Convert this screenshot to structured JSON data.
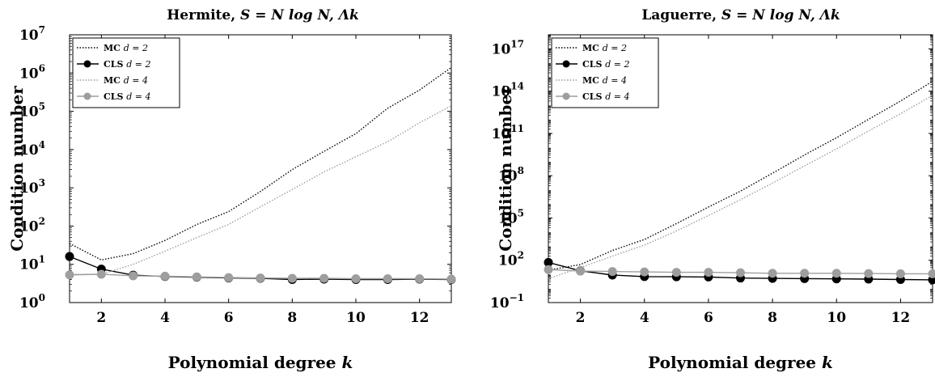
{
  "chart_data": [
    {
      "type": "line",
      "title": "Hermite, S = N log N, Λk",
      "xlabel": "Polynomial degree k",
      "ylabel": "Condition number",
      "xlim": [
        1,
        13
      ],
      "ylim": [
        1,
        10000000
      ],
      "yscale": "log",
      "xticks": [
        2,
        4,
        6,
        8,
        10,
        12
      ],
      "yticks": [
        {
          "base": "10",
          "exp": "0",
          "value": 1
        },
        {
          "base": "10",
          "exp": "1",
          "value": 10
        },
        {
          "base": "10",
          "exp": "2",
          "value": 100
        },
        {
          "base": "10",
          "exp": "3",
          "value": 1000
        },
        {
          "base": "10",
          "exp": "4",
          "value": 10000
        },
        {
          "base": "10",
          "exp": "5",
          "value": 100000
        },
        {
          "base": "10",
          "exp": "6",
          "value": 1000000
        },
        {
          "base": "10",
          "exp": "7",
          "value": 10000000
        }
      ],
      "grid": false,
      "legend_position": "top-left",
      "x": [
        1,
        2,
        3,
        4,
        5,
        6,
        7,
        8,
        9,
        10,
        11,
        12,
        13
      ],
      "series": [
        {
          "name": "MC d = 2",
          "label_main": "MC",
          "label_d": "d = 2",
          "color": "#000000",
          "style": "dotted",
          "marker": "none",
          "values": [
            35,
            13,
            19,
            42,
            110,
            240,
            800,
            3000,
            9000,
            26000,
            120000,
            360000,
            1400000
          ]
        },
        {
          "name": "CLS d = 2",
          "label_main": "CLS",
          "label_d": "d = 2",
          "color": "#000000",
          "style": "solid",
          "marker": "circle",
          "values": [
            16,
            7.5,
            5.2,
            4.8,
            4.6,
            4.4,
            4.3,
            4.0,
            4.1,
            4.0,
            4.0,
            4.1,
            4.0
          ]
        },
        {
          "name": "MC d = 4",
          "label_main": "MC",
          "label_d": "d = 4",
          "color": "#9e9e9e",
          "style": "dotted",
          "marker": "none",
          "values": [
            5.5,
            5.5,
            10,
            22,
            50,
            110,
            320,
            900,
            2600,
            6500,
            16000,
            50000,
            140000
          ]
        },
        {
          "name": "CLS d = 4",
          "label_main": "CLS",
          "label_d": "d = 4",
          "color": "#9e9e9e",
          "style": "solid",
          "marker": "circle",
          "values": [
            5.3,
            5.5,
            5.0,
            4.9,
            4.7,
            4.5,
            4.4,
            4.3,
            4.3,
            4.2,
            4.2,
            4.2,
            4.1
          ]
        }
      ]
    },
    {
      "type": "line",
      "title": "Laguerre, S = N log N, Λk",
      "xlabel": "Polynomial degree k",
      "ylabel": "Condition number",
      "xlim": [
        1,
        13
      ],
      "ylim": [
        0.1,
        1000000000000000000
      ],
      "yscale": "log",
      "xticks": [
        2,
        4,
        6,
        8,
        10,
        12
      ],
      "yticks": [
        {
          "base": "10",
          "exp": "−1",
          "value": 0.1
        },
        {
          "base": "10",
          "exp": "2",
          "value": 100
        },
        {
          "base": "10",
          "exp": "5",
          "value": 100000
        },
        {
          "base": "10",
          "exp": "8",
          "value": 100000000
        },
        {
          "base": "10",
          "exp": "11",
          "value": 100000000000
        },
        {
          "base": "10",
          "exp": "14",
          "value": 100000000000000
        },
        {
          "base": "10",
          "exp": "17",
          "value": 100000000000000000
        }
      ],
      "grid": false,
      "legend_position": "top-left",
      "x": [
        1,
        2,
        3,
        4,
        5,
        6,
        7,
        8,
        9,
        10,
        11,
        12,
        13
      ],
      "series": [
        {
          "name": "MC d = 2",
          "label_main": "MC",
          "label_d": "d = 2",
          "color": "#000000",
          "style": "dotted",
          "marker": "none",
          "values": [
            20,
            50,
            500,
            3000,
            40000,
            600000,
            8000000,
            150000000,
            3000000000,
            50000000000,
            1000000000000,
            20000000000000,
            500000000000000
          ]
        },
        {
          "name": "CLS d = 2",
          "label_main": "CLS",
          "label_d": "d = 2",
          "color": "#000000",
          "style": "solid",
          "marker": "circle",
          "values": [
            70,
            18,
            9,
            7,
            6.8,
            6.5,
            5.5,
            5.2,
            5,
            4.8,
            4.6,
            4.3,
            4.1
          ]
        },
        {
          "name": "MC d = 4",
          "label_main": "MC",
          "label_d": "d = 4",
          "color": "#9e9e9e",
          "style": "dotted",
          "marker": "none",
          "values": [
            5,
            30,
            200,
            1200,
            12000,
            150000,
            2000000,
            30000000,
            500000000,
            8000000000,
            150000000000,
            2500000000000,
            50000000000000
          ]
        },
        {
          "name": "CLS d = 4",
          "label_main": "CLS",
          "label_d": "d = 4",
          "color": "#9e9e9e",
          "style": "solid",
          "marker": "circle",
          "values": [
            22,
            17,
            16,
            15,
            14,
            14,
            13,
            12,
            12,
            12,
            11.5,
            11,
            11
          ]
        }
      ]
    }
  ]
}
